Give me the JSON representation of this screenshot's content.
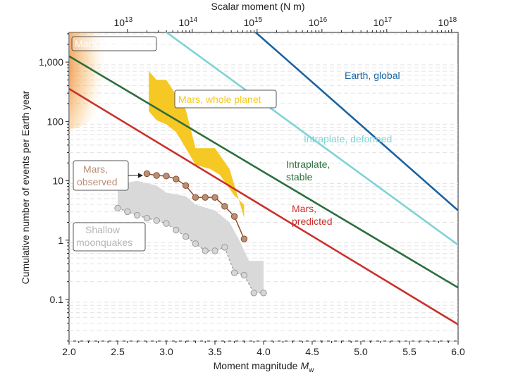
{
  "colors": {
    "earth_global": "#1b63a0",
    "intraplate_deformed": "#7fd3d6",
    "intraplate_stable": "#2b6e3c",
    "mars_predicted": "#c8312d",
    "mars_whole_planet": "#f6c823",
    "mars_observed": "#8b4b2b",
    "mars_observed_marker": "#b98f77",
    "moonquakes": "#a0a0a0",
    "moonquakes_band": "#d9d9d9",
    "hf_events": "#d0332a"
  },
  "chart_data": {
    "type": "line",
    "xlabel": "Moment magnitude",
    "xlabel_sub": "w",
    "xlabel_var": "M",
    "ylabel": "Cumulative number of events per Earth year",
    "top_axis_label": "Scalar moment (N m)",
    "xlim": [
      2.0,
      6.0
    ],
    "ylim_log10": [
      -1.7,
      3.5
    ],
    "x_ticks": [
      "2.0",
      "2.5",
      "3.0",
      "3.5",
      "4.0",
      "4.5",
      "5.0",
      "5.5",
      "6.0"
    ],
    "x_tick_values": [
      2.0,
      2.5,
      3.0,
      3.5,
      4.0,
      4.5,
      5.0,
      5.5,
      6.0
    ],
    "y_ticks": [
      "0.1",
      "1",
      "10",
      "100",
      "1,000"
    ],
    "y_tick_values": [
      -1,
      0,
      1,
      2,
      3
    ],
    "top_ticks": [
      {
        "base": "10",
        "exp": "13",
        "log_moment": 13
      },
      {
        "base": "10",
        "exp": "14",
        "log_moment": 14
      },
      {
        "base": "10",
        "exp": "15",
        "log_moment": 15
      },
      {
        "base": "10",
        "exp": "16",
        "log_moment": 16
      },
      {
        "base": "10",
        "exp": "17",
        "log_moment": 17
      },
      {
        "base": "10",
        "exp": "18",
        "log_moment": 18
      }
    ],
    "series": [
      {
        "name": "Earth, global",
        "label_lines": [
          "Earth, global"
        ],
        "x": [
          3.85,
          6.0
        ],
        "log10_y": [
          3.6,
          0.5
        ]
      },
      {
        "name": "Intraplate, deformed",
        "label_lines": [
          "Intraplate, deformed"
        ],
        "x": [
          2.92,
          6.0
        ],
        "log10_y": [
          3.6,
          -0.08
        ]
      },
      {
        "name": "Intraplate, stable",
        "label_lines": [
          "Intraplate,",
          "stable"
        ],
        "x": [
          2.0,
          6.0
        ],
        "log10_y": [
          3.1,
          -0.8
        ]
      },
      {
        "name": "Mars, predicted",
        "label_lines": [
          "Mars,",
          "predicted"
        ],
        "x": [
          2.0,
          6.0
        ],
        "log10_y": [
          2.55,
          -1.42
        ]
      },
      {
        "name": "Mars, observed",
        "label_lines": [
          "Mars,",
          "observed"
        ],
        "x": [
          2.8,
          2.9,
          3.0,
          3.1,
          3.2,
          3.3,
          3.4,
          3.5,
          3.6,
          3.7,
          3.8
        ],
        "log10_y": [
          1.12,
          1.09,
          1.08,
          1.03,
          0.92,
          0.72,
          0.72,
          0.72,
          0.57,
          0.4,
          0.02
        ]
      },
      {
        "name": "Shallow moonquakes",
        "label_lines": [
          "Shallow",
          "moonquakes"
        ],
        "x": [
          2.5,
          2.6,
          2.7,
          2.8,
          2.9,
          3.0,
          3.1,
          3.2,
          3.3,
          3.4,
          3.5,
          3.6,
          3.7,
          3.8,
          3.9,
          4.0
        ],
        "log10_y": [
          0.54,
          0.48,
          0.42,
          0.37,
          0.33,
          0.28,
          0.17,
          0.06,
          -0.06,
          -0.18,
          -0.18,
          -0.12,
          -0.55,
          -0.59,
          -0.89,
          -0.89
        ]
      }
    ],
    "bands": [
      {
        "name": "Mars, whole planet",
        "upper": [
          [
            2.82,
            2.85
          ],
          [
            2.9,
            2.7
          ],
          [
            3.0,
            2.7
          ],
          [
            3.2,
            2.2
          ],
          [
            3.3,
            1.55
          ],
          [
            3.5,
            1.55
          ],
          [
            3.65,
            1.2
          ],
          [
            3.8,
            0.38
          ]
        ],
        "lower": [
          [
            2.82,
            2.17
          ],
          [
            2.9,
            2.02
          ],
          [
            3.0,
            1.95
          ],
          [
            3.1,
            1.82
          ],
          [
            3.2,
            1.55
          ],
          [
            3.3,
            1.27
          ],
          [
            3.45,
            1.2
          ],
          [
            3.55,
            1.1
          ],
          [
            3.7,
            0.75
          ],
          [
            3.8,
            0.6
          ]
        ]
      },
      {
        "name": "Shallow moonquakes band",
        "upper": [
          [
            2.5,
            0.94
          ],
          [
            2.7,
            1.0
          ],
          [
            2.9,
            0.92
          ],
          [
            3.0,
            0.8
          ],
          [
            3.2,
            0.74
          ],
          [
            3.3,
            0.6
          ],
          [
            3.5,
            0.5
          ],
          [
            3.65,
            0.3
          ],
          [
            3.75,
            0.0
          ],
          [
            3.85,
            -0.35
          ],
          [
            4.0,
            -0.35
          ]
        ],
        "lower": [
          [
            2.5,
            0.54
          ],
          [
            2.7,
            0.42
          ],
          [
            2.9,
            0.33
          ],
          [
            3.0,
            0.28
          ],
          [
            3.1,
            0.17
          ],
          [
            3.2,
            0.06
          ],
          [
            3.3,
            -0.06
          ],
          [
            3.4,
            -0.18
          ],
          [
            3.5,
            -0.18
          ],
          [
            3.6,
            -0.12
          ],
          [
            3.7,
            -0.55
          ],
          [
            3.8,
            -0.59
          ],
          [
            3.9,
            -0.89
          ],
          [
            4.0,
            -0.89
          ]
        ]
      }
    ],
    "annotations": [
      {
        "name": "Mars HF events",
        "text": "Mars HF events"
      },
      {
        "name": "Mars, whole planet",
        "text": "Mars, whole planet"
      }
    ],
    "grid": "dashed horizontal lines at minor log ticks"
  }
}
